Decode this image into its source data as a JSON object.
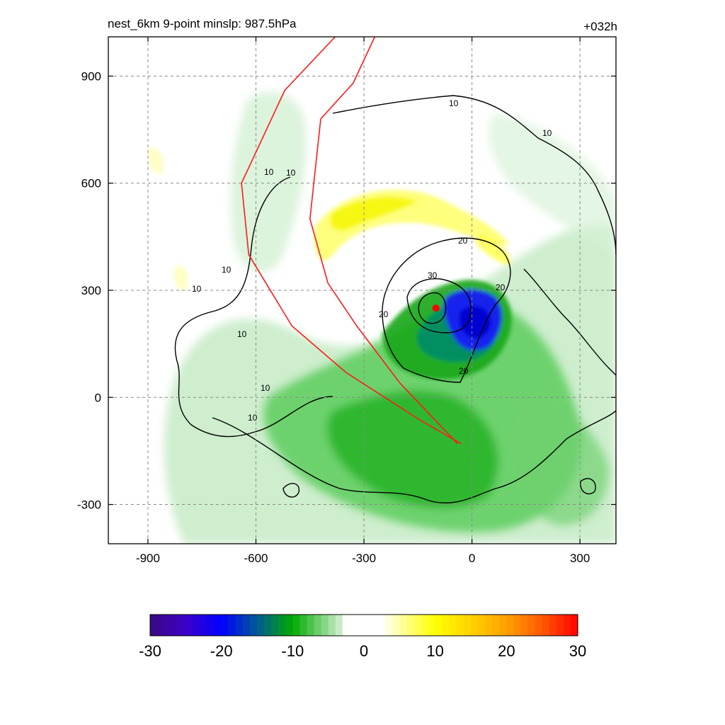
{
  "header": {
    "title": "nest_6km  9-point minslp: 987.5hPa",
    "forecast_hour": "+032h"
  },
  "chart_data": {
    "type": "heatmap",
    "xlim": [
      -1010,
      400
    ],
    "ylim": [
      -410,
      1010
    ],
    "x_ticks": [
      -900,
      -600,
      -300,
      0,
      300
    ],
    "y_ticks": [
      -300,
      0,
      300,
      600,
      900
    ],
    "grid": true,
    "fill_colormap": [
      "#3b0a80",
      "#0000ff",
      "#006699",
      "#00aa00",
      "#c8ecc8",
      "#ffffff",
      "#ffffaa",
      "#ffff00",
      "#ffa500",
      "#ff0000"
    ],
    "colorbar": {
      "range": [
        -30,
        30
      ],
      "ticks": [
        "-30",
        "-20",
        "-10",
        "0",
        "10",
        "20",
        "30"
      ],
      "placement": "bottom"
    },
    "contour_levels": [
      10,
      20,
      30
    ],
    "contour_labels": [
      "10",
      "10",
      "10",
      "10",
      "10",
      "10",
      "10",
      "10",
      "10",
      "20",
      "20",
      "20",
      "30",
      "20"
    ],
    "center_marker": {
      "x": -100,
      "y": 250,
      "color": "#ff0000"
    },
    "red_lines": [
      {
        "name": "",
        "points": [
          [
            -380,
            1010
          ],
          [
            -520,
            860
          ],
          [
            -640,
            600
          ],
          [
            -620,
            400
          ],
          [
            -500,
            200
          ],
          [
            -350,
            70
          ],
          [
            -150,
            -60
          ],
          [
            -30,
            -130
          ]
        ]
      },
      {
        "name": "",
        "points": [
          [
            -270,
            1010
          ],
          [
            -330,
            880
          ],
          [
            -420,
            780
          ],
          [
            -450,
            500
          ],
          [
            -400,
            320
          ],
          [
            -320,
            200
          ],
          [
            -200,
            40
          ],
          [
            -40,
            -130
          ]
        ]
      }
    ]
  }
}
